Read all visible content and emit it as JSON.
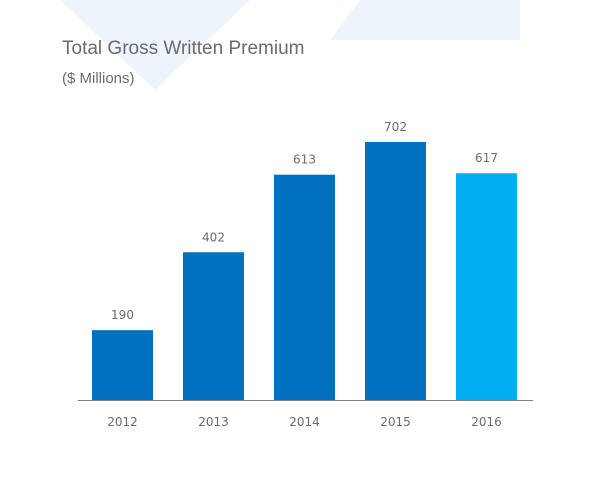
{
  "colors": {
    "bar": "#0070c0",
    "bar_highlight": "#00b0f0",
    "axis": "#7f7f7f",
    "text": "#6b6b6b",
    "background_shape": "#eef4fb"
  },
  "chart_data": {
    "type": "bar",
    "title": "Total Gross Written Premium",
    "subtitle": "($ Millions)",
    "categories": [
      "2012",
      "2013",
      "2014",
      "2015",
      "2016"
    ],
    "values": [
      190,
      402,
      613,
      702,
      617
    ],
    "data_labels": [
      "190",
      "402",
      "613",
      "702",
      "617"
    ],
    "highlight_category": "2016",
    "xlabel": "",
    "ylabel": "",
    "ylim": [
      0,
      702
    ],
    "grid": false,
    "legend": "none"
  }
}
